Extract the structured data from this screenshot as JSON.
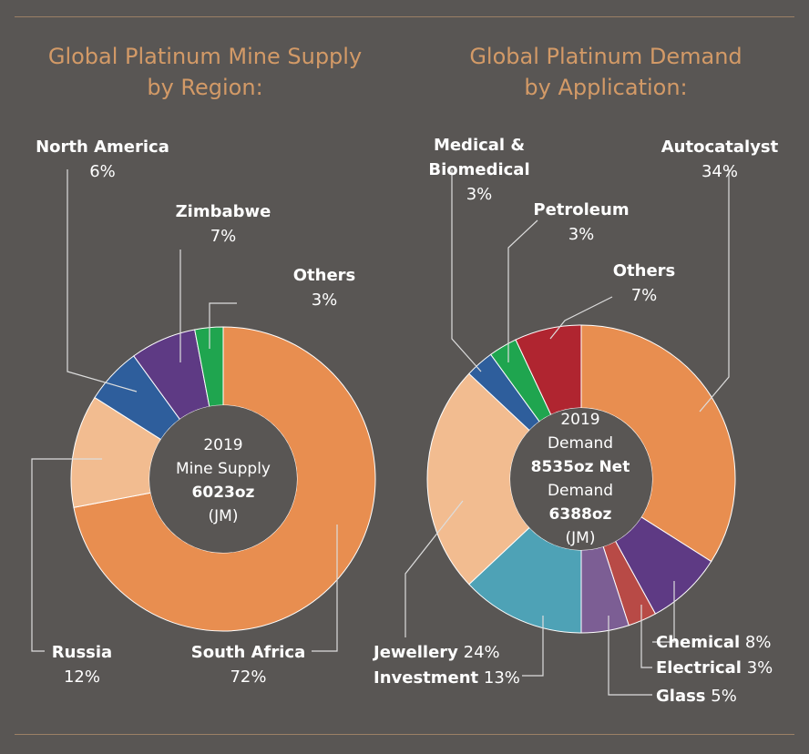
{
  "colors": {
    "background": "#595654",
    "title": "#d39a67",
    "rule": "#9c8066",
    "leader": "#dddddd"
  },
  "left_panel": {
    "title_line1": "Global Platinum Mine Supply",
    "title_line2": "by Region:",
    "center": [
      "2019",
      "Mine Supply",
      "6023oz",
      "(JM)"
    ],
    "labels": {
      "north_america_name": "North America",
      "north_america_pct": "6%",
      "zimbabwe_name": "Zimbabwe",
      "zimbabwe_pct": "7%",
      "others_name": "Others",
      "others_pct": "3%",
      "russia_name": "Russia",
      "russia_pct": "12%",
      "south_africa_name": "South Africa",
      "south_africa_pct": "72%"
    }
  },
  "right_panel": {
    "title_line1": "Global Platinum Demand",
    "title_line2": "by Application:",
    "center": [
      "2019",
      "Demand",
      "8535oz Net",
      "Demand",
      "6388oz",
      "(JM)"
    ],
    "labels": {
      "medical_name1": "Medical &",
      "medical_name2": "Biomedical",
      "medical_pct": "3%",
      "petroleum_name": "Petroleum",
      "petroleum_pct": "3%",
      "others_name": "Others",
      "others_pct": "7%",
      "autocatalyst_name": "Autocatalyst",
      "autocatalyst_pct": "34%",
      "jewellery_name": "Jewellery",
      "jewellery_pct": "24%",
      "investment_name": "Investment",
      "investment_pct": "13%",
      "chemical_name": "Chemical",
      "chemical_pct": "8%",
      "electrical_name": "Electrical",
      "electrical_pct": "3%",
      "glass_name": "Glass",
      "glass_pct": "5%"
    }
  },
  "chart_data": [
    {
      "type": "pie",
      "title": "Global Platinum Mine Supply by Region:",
      "slices": [
        {
          "name": "South Africa",
          "value": 72,
          "color": "#e88e50"
        },
        {
          "name": "Russia",
          "value": 12,
          "color": "#f2bc90"
        },
        {
          "name": "North America",
          "value": 6,
          "color": "#2e5e9c"
        },
        {
          "name": "Zimbabwe",
          "value": 7,
          "color": "#5e3a84"
        },
        {
          "name": "Others",
          "value": 3,
          "color": "#1fa54f"
        }
      ]
    },
    {
      "type": "pie",
      "title": "Global Platinum Demand by Application:",
      "slices": [
        {
          "name": "Autocatalyst",
          "value": 34,
          "color": "#e88e50"
        },
        {
          "name": "Chemical",
          "value": 8,
          "color": "#5e3a84"
        },
        {
          "name": "Electrical",
          "value": 3,
          "color": "#b84a46"
        },
        {
          "name": "Glass",
          "value": 5,
          "color": "#7c5e94"
        },
        {
          "name": "Investment",
          "value": 13,
          "color": "#4ea2b6"
        },
        {
          "name": "Jewellery",
          "value": 24,
          "color": "#f2bc90"
        },
        {
          "name": "Medical & Biomedical",
          "value": 3,
          "color": "#2e5e9c"
        },
        {
          "name": "Petroleum",
          "value": 3,
          "color": "#1fa54f"
        },
        {
          "name": "Others",
          "value": 7,
          "color": "#b02530"
        }
      ]
    }
  ]
}
